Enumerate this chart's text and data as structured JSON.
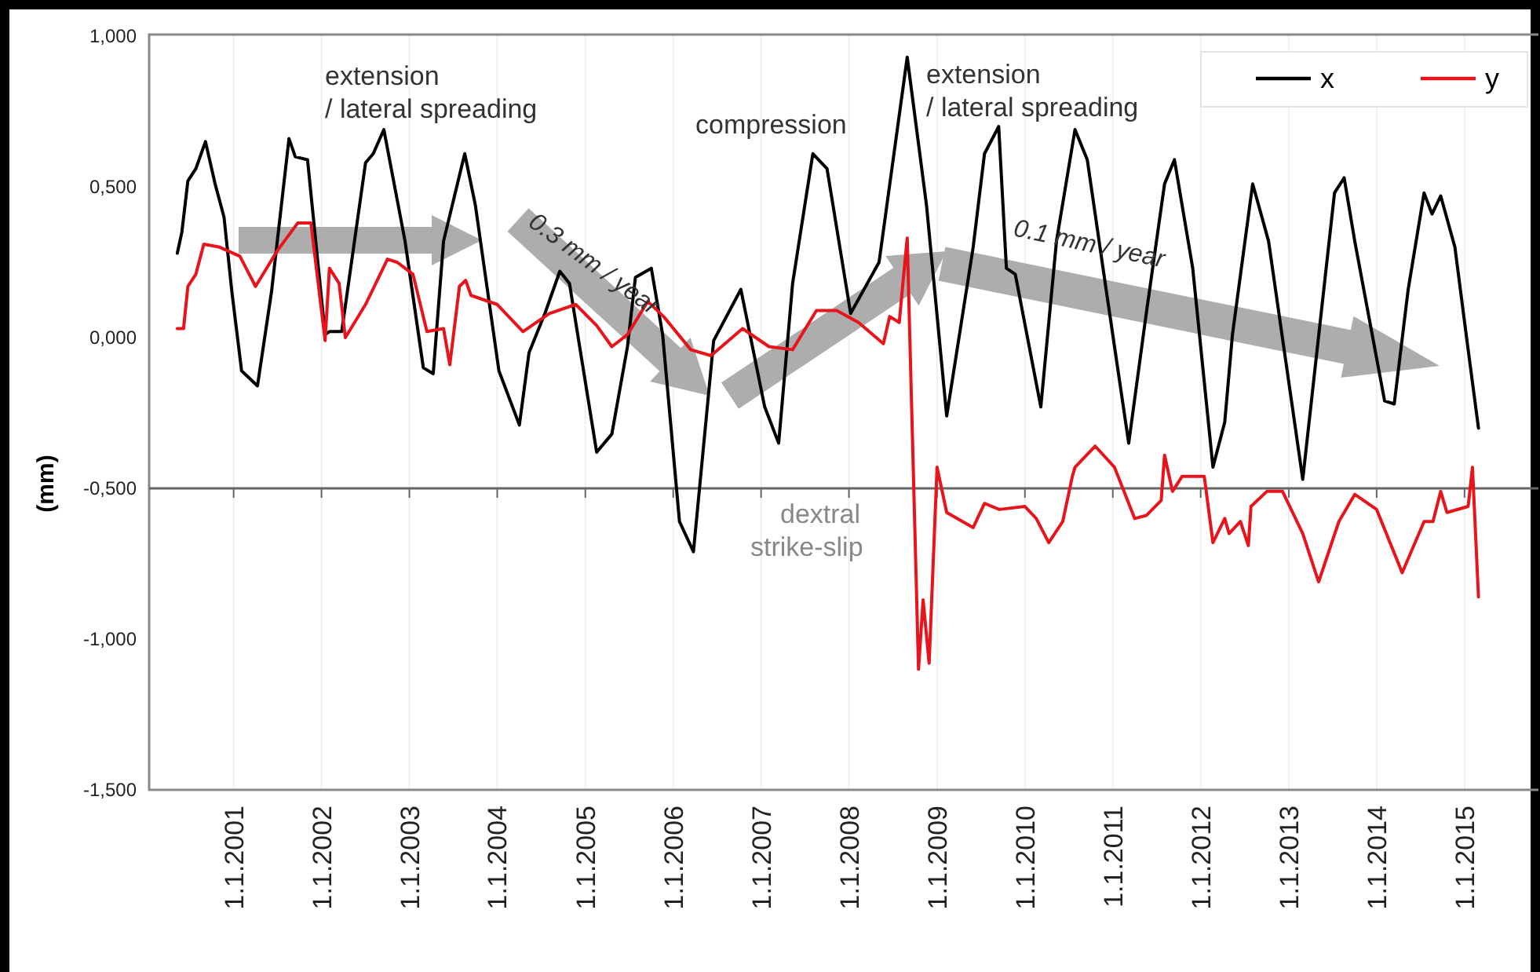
{
  "chart_data": {
    "type": "line",
    "ylabel": "(mm)",
    "xlim": [
      "2000-01-16",
      "2015-11-04"
    ],
    "xticks": [
      {
        "value": "2001-01-01",
        "label": "1.1.2001"
      },
      {
        "value": "2002-01-01",
        "label": "1.1.2002"
      },
      {
        "value": "2003-01-01",
        "label": "1.1.2003"
      },
      {
        "value": "2004-01-01",
        "label": "1.1.2004"
      },
      {
        "value": "2005-01-01",
        "label": "1.1.2005"
      },
      {
        "value": "2006-01-01",
        "label": "1.1.2006"
      },
      {
        "value": "2007-01-01",
        "label": "1.1.2007"
      },
      {
        "value": "2008-01-01",
        "label": "1.1.2008"
      },
      {
        "value": "2009-01-01",
        "label": "1.1.2009"
      },
      {
        "value": "2010-01-01",
        "label": "1.1.2010"
      },
      {
        "value": "2011-01-01",
        "label": "1.1.2011"
      },
      {
        "value": "2012-01-01",
        "label": "1.1.2012"
      },
      {
        "value": "2013-01-01",
        "label": "1.1.2013"
      },
      {
        "value": "2014-01-01",
        "label": "1.1.2014"
      },
      {
        "value": "2015-01-01",
        "label": "1.1.2015"
      }
    ],
    "ylim": [
      -1.5,
      1.0
    ],
    "yticks": [
      {
        "value": -1.5,
        "label": "-1,500"
      },
      {
        "value": -1,
        "label": "-1,000"
      },
      {
        "value": -0.5,
        "label": "-0,500"
      },
      {
        "value": 0,
        "label": "0,000"
      },
      {
        "value": 0.5,
        "label": "0,500"
      },
      {
        "value": 1,
        "label": "1,000"
      }
    ],
    "grid": "x",
    "legend": "top right",
    "marker": "none",
    "line_style": "solid",
    "ref_lines": [
      {
        "axis": "y",
        "value": -0.5,
        "color": "#666666"
      }
    ],
    "annotations": [
      "extension\n/ lateral spreading",
      "compression",
      "extension\n/ lateral spreading",
      {
        "text": "0.3 mm / year",
        "x": "2004-10-27",
        "y": 0.18
      },
      "0.1 mm / year",
      "dextral\nstrike-slip"
    ],
    "series": [
      {
        "name": "x",
        "color": "#000000",
        "x": [
          "2000-05-12",
          "2000-05-31",
          "2000-06-25",
          "2000-07-28",
          "2000-09-06",
          "2000-10-16",
          "2000-11-22",
          "2000-12-25",
          "2001-02-03",
          "2001-04-10",
          "2001-06-07",
          "2001-08-19",
          "2001-09-14",
          "2001-11-04",
          "2002-01-16",
          "2002-02-03",
          "2002-03-26",
          "2002-07-03",
          "2002-08-04",
          "2002-09-17",
          "2002-12-14",
          "2003-02-28",
          "2003-04-10",
          "2003-05-23",
          "2003-08-19",
          "2003-10-02",
          "2004-01-08",
          "2004-04-02",
          "2004-05-12",
          "2004-07-17",
          "2004-09-17",
          "2004-10-27",
          "2005-02-17",
          "2005-04-21",
          "2005-06-25",
          "2005-07-28",
          "2005-10-02",
          "2005-11-18",
          "2006-01-27",
          "2006-03-26",
          "2006-06-18",
          "2006-10-09",
          "2007-01-16",
          "2007-03-15",
          "2007-05-12",
          "2007-08-04",
          "2007-10-02",
          "2008-01-08",
          "2008-05-05",
          "2008-08-30",
          "2008-11-18",
          "2009-02-10",
          "2009-05-31",
          "2009-07-17",
          "2009-09-14",
          "2009-10-16",
          "2009-11-22",
          "2010-03-08",
          "2010-05-12",
          "2010-07-28",
          "2010-09-17",
          "2010-12-06",
          "2011-03-08",
          "2011-05-20",
          "2011-08-04",
          "2011-09-14",
          "2011-11-29",
          "2012-02-21",
          "2012-04-10",
          "2012-05-12",
          "2012-08-04",
          "2012-10-09",
          "2013-02-28",
          "2013-07-10",
          "2013-08-19",
          "2013-10-02",
          "2014-02-03",
          "2014-03-15",
          "2014-05-12",
          "2014-07-17",
          "2014-08-19",
          "2014-09-24",
          "2014-11-22",
          "2015-01-16",
          "2015-02-28"
        ],
        "values": [
          0.28,
          0.35,
          0.52,
          0.56,
          0.65,
          0.51,
          0.4,
          0.15,
          -0.11,
          -0.16,
          0.15,
          0.66,
          0.6,
          0.59,
          0.01,
          0.02,
          0.02,
          0.58,
          0.61,
          0.69,
          0.32,
          -0.1,
          -0.12,
          0.32,
          0.61,
          0.44,
          -0.11,
          -0.29,
          -0.05,
          0.08,
          0.22,
          0.18,
          -0.38,
          -0.32,
          -0.03,
          0.2,
          0.23,
          0.01,
          -0.61,
          -0.71,
          -0.01,
          0.16,
          -0.23,
          -0.35,
          0.18,
          0.61,
          0.56,
          0.08,
          0.25,
          0.93,
          0.44,
          -0.26,
          0.3,
          0.61,
          0.7,
          0.23,
          0.21,
          -0.23,
          0.32,
          0.69,
          0.59,
          0.15,
          -0.35,
          0.08,
          0.51,
          0.59,
          0.23,
          -0.43,
          -0.28,
          0.01,
          0.51,
          0.32,
          -0.47,
          0.48,
          0.53,
          0.32,
          -0.21,
          -0.22,
          0.16,
          0.48,
          0.41,
          0.47,
          0.3,
          -0.04,
          -0.3
        ]
      },
      {
        "name": "y",
        "color": "#e8141c",
        "x": [
          "2000-05-12",
          "2000-06-07",
          "2000-06-25",
          "2000-07-28",
          "2000-08-30",
          "2000-11-04",
          "2001-01-27",
          "2001-04-02",
          "2001-07-03",
          "2001-09-24",
          "2001-11-18",
          "2002-01-16",
          "2002-02-03",
          "2002-03-15",
          "2002-04-10",
          "2002-07-03",
          "2002-10-02",
          "2002-11-11",
          "2003-01-16",
          "2003-03-15",
          "2003-05-23",
          "2003-06-18",
          "2003-07-28",
          "2003-08-23",
          "2003-09-14",
          "2004-01-01",
          "2004-04-17",
          "2004-08-04",
          "2004-11-22",
          "2005-02-17",
          "2005-04-21",
          "2005-06-25",
          "2005-09-17",
          "2005-11-22",
          "2006-03-15",
          "2006-06-07",
          "2006-10-16",
          "2007-02-03",
          "2007-05-12",
          "2007-08-19",
          "2007-11-11",
          "2008-02-10",
          "2008-05-23",
          "2008-06-18",
          "2008-07-28",
          "2008-08-12",
          "2008-08-30",
          "2008-10-16",
          "2008-11-04",
          "2008-11-29",
          "2009-01-01",
          "2009-02-10",
          "2009-05-31",
          "2009-07-17",
          "2009-09-17",
          "2010-01-01",
          "2010-02-17",
          "2010-04-10",
          "2010-06-07",
          "2010-07-17",
          "2010-07-28",
          "2010-10-20",
          "2011-01-08",
          "2011-04-02",
          "2011-05-20",
          "2011-07-21",
          "2011-08-04",
          "2011-09-06",
          "2011-10-16",
          "2012-01-16",
          "2012-02-21",
          "2012-04-10",
          "2012-04-28",
          "2012-06-14",
          "2012-07-17",
          "2012-07-28",
          "2012-10-02",
          "2012-12-06",
          "2013-02-28",
          "2013-05-05",
          "2013-07-28",
          "2013-10-02",
          "2014-01-01",
          "2014-04-17",
          "2014-07-17",
          "2014-08-23",
          "2014-09-24",
          "2014-10-20",
          "2015-01-16",
          "2015-02-03",
          "2015-02-28"
        ],
        "values": [
          0.03,
          0.03,
          0.17,
          0.21,
          0.31,
          0.3,
          0.27,
          0.17,
          0.29,
          0.38,
          0.38,
          -0.01,
          0.23,
          0.18,
          0.0,
          0.11,
          0.26,
          0.25,
          0.21,
          0.02,
          0.03,
          -0.09,
          0.17,
          0.19,
          0.14,
          0.11,
          0.02,
          0.08,
          0.11,
          0.04,
          -0.03,
          0.01,
          0.12,
          0.07,
          -0.04,
          -0.06,
          0.03,
          -0.03,
          -0.04,
          0.09,
          0.09,
          0.05,
          -0.02,
          0.07,
          0.05,
          0.18,
          0.33,
          -1.1,
          -0.87,
          -1.08,
          -0.43,
          -0.58,
          -0.63,
          -0.55,
          -0.57,
          -0.56,
          -0.6,
          -0.68,
          -0.61,
          -0.46,
          -0.43,
          -0.36,
          -0.43,
          -0.6,
          -0.59,
          -0.54,
          -0.39,
          -0.51,
          -0.46,
          -0.46,
          -0.68,
          -0.6,
          -0.65,
          -0.61,
          -0.69,
          -0.56,
          -0.51,
          -0.51,
          -0.65,
          -0.81,
          -0.61,
          -0.52,
          -0.57,
          -0.78,
          -0.61,
          -0.61,
          -0.51,
          -0.58,
          -0.56,
          -0.43,
          -0.86
        ]
      }
    ]
  }
}
